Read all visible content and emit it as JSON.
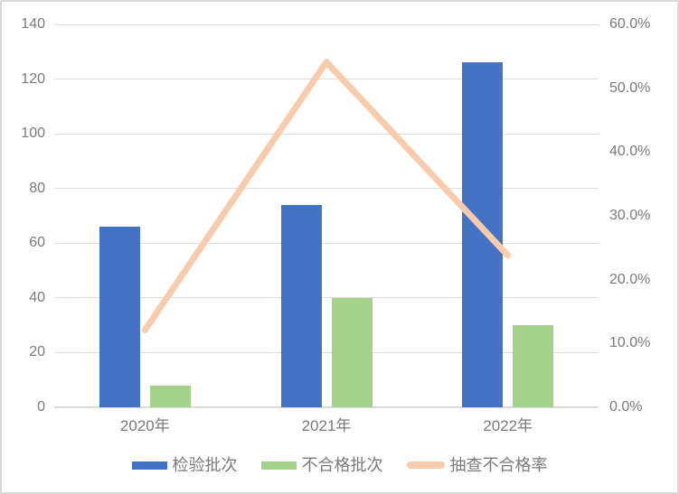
{
  "chart_data": {
    "type": "bar",
    "subtype": "combo-bar-line-dual-axis",
    "title": "",
    "categories": [
      "2020年",
      "2021年",
      "2022年"
    ],
    "series": [
      {
        "name": "检验批次",
        "type": "bar",
        "axis": "left",
        "color": "#4472c4",
        "values": [
          66,
          74,
          126
        ]
      },
      {
        "name": "不合格批次",
        "type": "bar",
        "axis": "left",
        "color": "#a5d28a",
        "values": [
          8,
          40,
          30
        ]
      },
      {
        "name": "抽查不合格率",
        "type": "line",
        "axis": "right",
        "color": "#f8cbad",
        "values": [
          12.1,
          54.1,
          23.8
        ]
      }
    ],
    "left_axis": {
      "min": 0,
      "max": 140,
      "step": 20,
      "tick_labels": [
        "0",
        "20",
        "40",
        "60",
        "80",
        "100",
        "120",
        "140"
      ]
    },
    "right_axis": {
      "min": 0,
      "max": 60,
      "step": 10,
      "tick_labels": [
        "0.0%",
        "10.0%",
        "20.0%",
        "30.0%",
        "40.0%",
        "50.0%",
        "60.0%"
      ]
    },
    "grid": true,
    "legend_position": "bottom",
    "legend": [
      "检验批次",
      "不合格批次",
      "抽查不合格率"
    ]
  },
  "colors": {
    "bar_blue": "#4472c4",
    "bar_green": "#a5d28a",
    "line_peach": "#f8cbad",
    "gridline": "#dcdcdc",
    "axis_text": "#7a7a7a",
    "frame_border": "#d9d9d9",
    "background": "#ffffff"
  }
}
